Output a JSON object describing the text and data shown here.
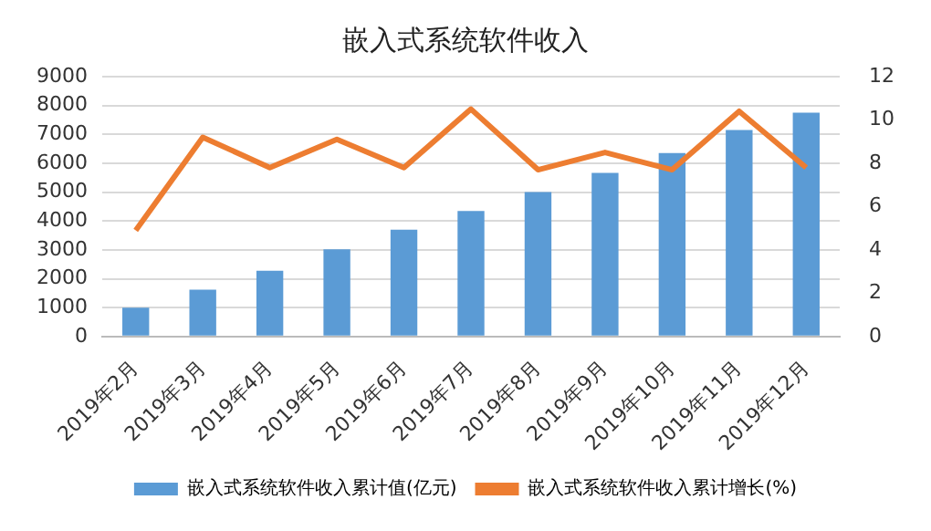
{
  "chart_data": {
    "type": "bar",
    "title": "嵌入式系统软件收入",
    "categories": [
      "2019年2月",
      "2019年3月",
      "2019年4月",
      "2019年5月",
      "2019年6月",
      "2019年7月",
      "2019年8月",
      "2019年9月",
      "2019年10月",
      "2019年11月",
      "2019年12月"
    ],
    "series": [
      {
        "name": "嵌入式系统软件收入累计值(亿元)",
        "color": "#5b9bd5",
        "values": [
          1000,
          1620,
          2280,
          3020,
          3700,
          4350,
          5000,
          5670,
          6350,
          7150,
          7750
        ]
      },
      {
        "name": "嵌入式系统软件收入累计增长(%)",
        "type": "line",
        "axis": "y2",
        "color": "#ed7d31",
        "values": [
          4.9,
          9.2,
          7.8,
          9.1,
          7.8,
          10.5,
          7.7,
          8.5,
          7.7,
          10.4,
          7.8
        ]
      }
    ],
    "ylim": [
      0,
      9000
    ],
    "yticks": [
      0,
      1000,
      2000,
      3000,
      4000,
      5000,
      6000,
      7000,
      8000,
      9000
    ],
    "y2lim": [
      0,
      12
    ],
    "y2ticks": [
      0,
      2,
      4,
      6,
      8,
      10,
      12
    ],
    "grid": "y",
    "legend": "bottom",
    "marker": "none"
  }
}
